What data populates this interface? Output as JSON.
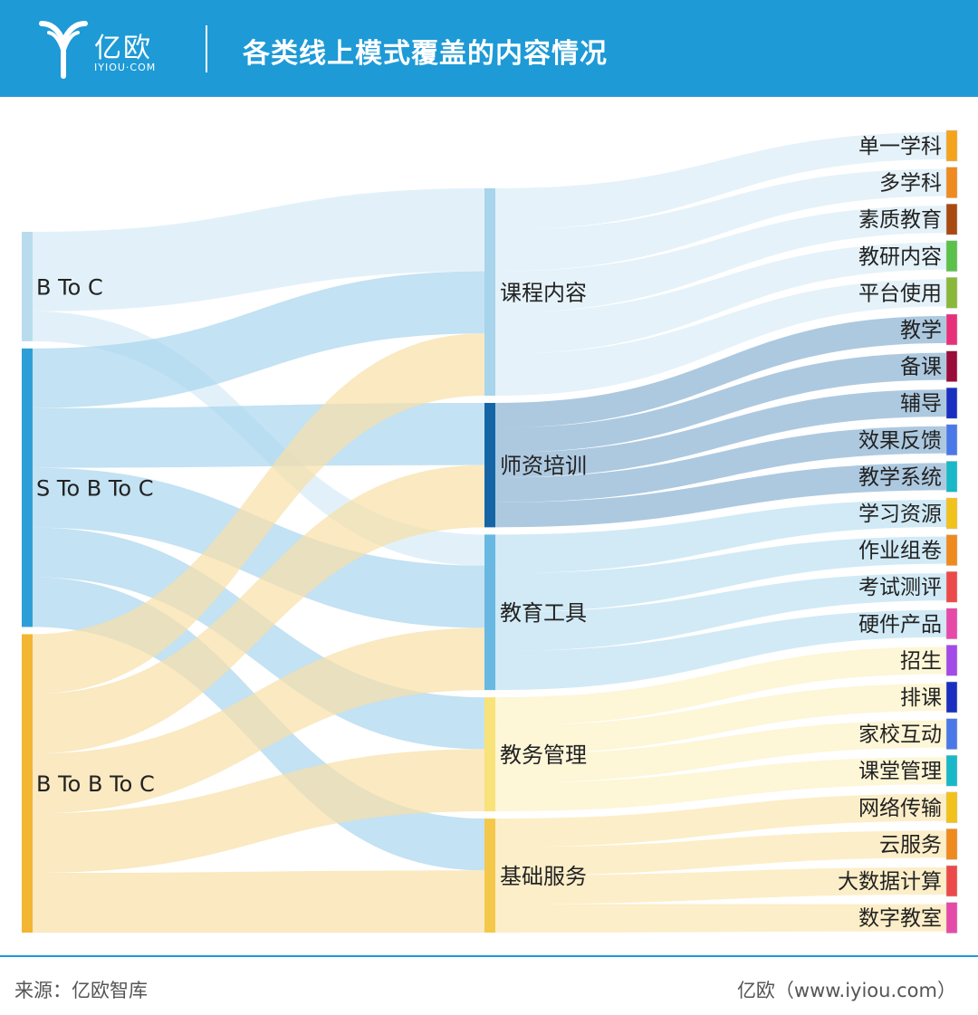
{
  "header": {
    "logo_cn": "亿欧",
    "logo_en": "IYIOU·COM",
    "title": "各类线上模式覆盖的内容情况"
  },
  "footer": {
    "source": "来源：亿欧智库",
    "site": "亿欧（www.iyiou.com）"
  },
  "colors": {
    "header": "#1e9ad6",
    "btoc": "#b8dcee",
    "stobtoc": "#2e9fd6",
    "btobtoc": "#f2b632"
  },
  "chart_data": {
    "type": "sankey",
    "sources": [
      {
        "id": "btoc",
        "label": "B To C",
        "color": "#b8dcee",
        "linkColor": "#d6ebf6"
      },
      {
        "id": "stobtoc",
        "label": "S To B To C",
        "color": "#2e9fd6",
        "linkColor": "#a9d6ee"
      },
      {
        "id": "btobtoc",
        "label": "B To B To C",
        "color": "#f2b632",
        "linkColor": "#f8dfa6"
      }
    ],
    "categories": [
      {
        "id": "kc",
        "label": "课程内容",
        "color": "#a8d4ec",
        "leaves": [
          {
            "label": "单一学科",
            "color": "#f4a31c"
          },
          {
            "label": "多学科",
            "color": "#ef8a1e"
          },
          {
            "label": "素质教育",
            "color": "#a84a12"
          },
          {
            "label": "教研内容",
            "color": "#5ac24a"
          },
          {
            "label": "平台使用",
            "color": "#8ab83a"
          }
        ]
      },
      {
        "id": "sz",
        "label": "师资培训",
        "color": "#1565a6",
        "leaves": [
          {
            "label": "教学",
            "color": "#e8307a"
          },
          {
            "label": "备课",
            "color": "#9a0c3a"
          },
          {
            "label": "辅导",
            "color": "#1a2fc0"
          },
          {
            "label": "效果反馈",
            "color": "#4a78e8"
          },
          {
            "label": "教学系统",
            "color": "#18b8c8"
          }
        ]
      },
      {
        "id": "jy",
        "label": "教育工具",
        "color": "#68b8e2",
        "leaves": [
          {
            "label": "学习资源",
            "color": "#f2c21c"
          },
          {
            "label": "作业组卷",
            "color": "#ef8a1e"
          },
          {
            "label": "考试测评",
            "color": "#ec4a4a"
          },
          {
            "label": "硬件产品",
            "color": "#e64aa8"
          }
        ]
      },
      {
        "id": "jw",
        "label": "教务管理",
        "color": "#f8e27a",
        "leaves": [
          {
            "label": "招生",
            "color": "#a44ae8"
          },
          {
            "label": "排课",
            "color": "#1a2fc0"
          },
          {
            "label": "家校互动",
            "color": "#4a78e8"
          },
          {
            "label": "课堂管理",
            "color": "#18b8c8"
          }
        ]
      },
      {
        "id": "jc",
        "label": "基础服务",
        "color": "#f4c84a",
        "leaves": [
          {
            "label": "网络传输",
            "color": "#f2c21c"
          },
          {
            "label": "云服务",
            "color": "#ef8a1e"
          },
          {
            "label": "大数据计算",
            "color": "#ec4a4a"
          },
          {
            "label": "数字教室",
            "color": "#e64aa8"
          }
        ]
      }
    ],
    "links": [
      {
        "source": "btoc",
        "target": "kc",
        "value": 4
      },
      {
        "source": "btoc",
        "target": "jy",
        "value": 1.5
      },
      {
        "source": "stobtoc",
        "target": "kc",
        "value": 3
      },
      {
        "source": "stobtoc",
        "target": "sz",
        "value": 3
      },
      {
        "source": "stobtoc",
        "target": "jy",
        "value": 3
      },
      {
        "source": "stobtoc",
        "target": "jw",
        "value": 2.5
      },
      {
        "source": "stobtoc",
        "target": "jc",
        "value": 2.5
      },
      {
        "source": "btobtoc",
        "target": "kc",
        "value": 3
      },
      {
        "source": "btobtoc",
        "target": "sz",
        "value": 3
      },
      {
        "source": "btobtoc",
        "target": "jy",
        "value": 3
      },
      {
        "source": "btobtoc",
        "target": "jw",
        "value": 3
      },
      {
        "source": "btobtoc",
        "target": "jc",
        "value": 3
      }
    ]
  }
}
